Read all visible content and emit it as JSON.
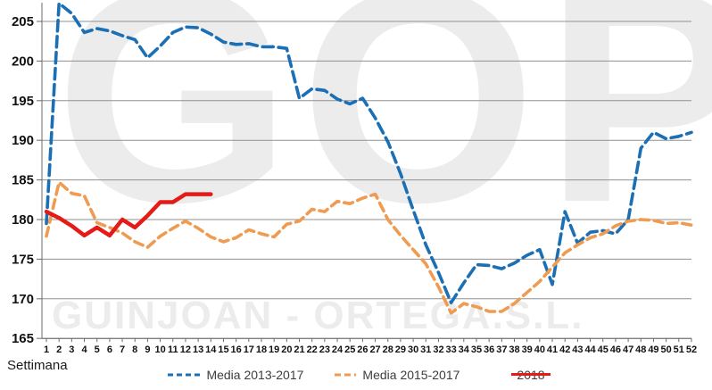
{
  "watermark": {
    "big": "GOP",
    "name": "GUINJOAN - ORTEGA.S.L."
  },
  "chart_data": {
    "type": "line",
    "title": "",
    "xlabel": "Settimana",
    "ylabel": "",
    "grid": true,
    "legend_position": "bottom",
    "ylim": [
      165,
      207.7
    ],
    "yticks": [
      165,
      170,
      175,
      180,
      185,
      190,
      195,
      200,
      205
    ],
    "x": [
      1,
      2,
      3,
      4,
      5,
      6,
      7,
      8,
      9,
      10,
      11,
      12,
      13,
      14,
      15,
      16,
      17,
      18,
      19,
      20,
      21,
      22,
      23,
      24,
      25,
      26,
      27,
      28,
      29,
      30,
      31,
      32,
      33,
      34,
      35,
      36,
      37,
      38,
      39,
      40,
      41,
      42,
      43,
      44,
      45,
      46,
      47,
      48,
      49,
      50,
      51,
      52
    ],
    "series": [
      {
        "name": "Media 2013-2017",
        "color": "#1b6fb5",
        "style": "dashed",
        "dash": "12 6",
        "width": 3.6,
        "values": [
          179.5,
          207.3,
          206.0,
          203.6,
          204.1,
          203.8,
          203.2,
          202.7,
          200.4,
          201.9,
          203.6,
          204.3,
          204.2,
          203.4,
          202.4,
          202.1,
          202.2,
          201.8,
          201.8,
          201.6,
          195.3,
          196.5,
          196.3,
          195.2,
          194.6,
          195.3,
          192.8,
          189.8,
          185.8,
          181.2,
          176.8,
          173.3,
          169.5,
          172.0,
          174.3,
          174.2,
          173.8,
          174.5,
          175.5,
          176.2,
          171.8,
          181.0,
          177.0,
          178.4,
          178.6,
          178.2,
          180.0,
          189.0,
          191.0,
          190.2,
          190.5,
          191.0
        ]
      },
      {
        "name": "Media 2015-2017",
        "color": "#ef9b51",
        "style": "dashed",
        "dash": "10 6",
        "width": 3.6,
        "values": [
          177.9,
          184.7,
          183.3,
          183.0,
          179.6,
          179.0,
          178.3,
          177.2,
          176.5,
          177.9,
          178.9,
          179.8,
          178.9,
          177.8,
          177.2,
          177.7,
          178.7,
          178.2,
          177.8,
          179.4,
          179.8,
          181.3,
          181.0,
          182.3,
          182.0,
          182.7,
          183.2,
          180.0,
          178.0,
          176.2,
          174.4,
          171.5,
          168.2,
          169.4,
          169.0,
          168.4,
          168.4,
          169.4,
          170.8,
          172.2,
          174.0,
          175.8,
          176.8,
          177.7,
          178.2,
          179.2,
          179.8,
          180.0,
          179.9,
          179.5,
          179.6,
          179.3
        ]
      },
      {
        "name": "2018",
        "color": "#e41b17",
        "style": "solid",
        "dash": "",
        "width": 4.5,
        "values": [
          181.0,
          180.2,
          179.2,
          178.0,
          179.0,
          178.0,
          180.0,
          179.0,
          180.5,
          182.2,
          182.2,
          183.2,
          183.2,
          183.2
        ]
      }
    ],
    "axis_color": "#6b6b6b",
    "grid_color": "#909090",
    "tick_label_color": "#111111"
  }
}
